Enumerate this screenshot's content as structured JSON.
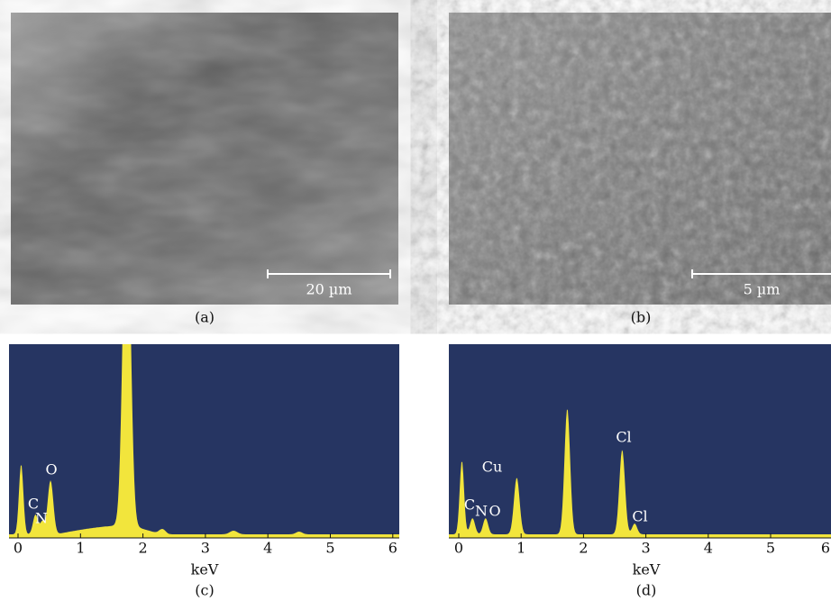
{
  "panels": [
    {
      "caption": "(a)",
      "scale_bar": "20 µm"
    },
    {
      "caption": "(b)",
      "scale_bar": "5 µm"
    },
    {
      "caption": "(c)",
      "x_axis_label": "keV",
      "x_ticks": [
        "0",
        "1",
        "2",
        "3",
        "4",
        "5",
        "6"
      ],
      "peak_labels": [
        "C",
        "N",
        "O"
      ]
    },
    {
      "caption": "(d)",
      "x_axis_label": "keV",
      "x_ticks": [
        "0",
        "1",
        "2",
        "3",
        "4",
        "5",
        "6"
      ],
      "peak_labels": [
        "C",
        "N",
        "O",
        "Cu",
        "Cl",
        "Cl"
      ]
    }
  ]
}
